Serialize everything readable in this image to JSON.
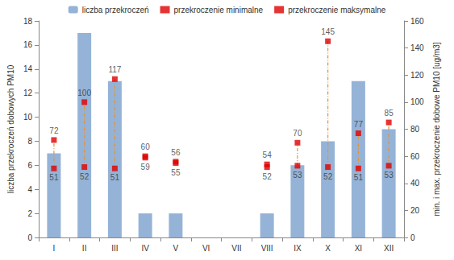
{
  "chart_data": {
    "type": "bar",
    "categories": [
      "I",
      "II",
      "III",
      "IV",
      "V",
      "VI",
      "VII",
      "VIII",
      "IX",
      "X",
      "XI",
      "XII"
    ],
    "series": [
      {
        "name": "liczba przekroczeń",
        "type": "bar",
        "color": "#95B3D7",
        "values": [
          7,
          17,
          13,
          2,
          2,
          0,
          0,
          2,
          6,
          8,
          13,
          9
        ]
      },
      {
        "name": "przekroczenie minimalne",
        "type": "scatter",
        "axis": "y2",
        "color": "#E00000",
        "marker": "square",
        "data_labels": true,
        "values": [
          51,
          52,
          51,
          59,
          55,
          null,
          null,
          52,
          53,
          52,
          51,
          53
        ]
      },
      {
        "name": "przekroczenie maksymalne",
        "type": "scatter",
        "axis": "y2",
        "color": "#E00000",
        "marker": "square",
        "data_labels": true,
        "values": [
          72,
          100,
          117,
          60,
          56,
          null,
          null,
          54,
          70,
          145,
          77,
          85
        ]
      }
    ],
    "ylabel": "liczba przekroczeń dobowych PM10",
    "y2label": "min. i max. przekroczenie dobowe PM10 [ug/m3]",
    "ylim": [
      0,
      18
    ],
    "yticks": [
      0,
      2,
      4,
      6,
      8,
      10,
      12,
      14,
      16,
      18
    ],
    "y2lim": [
      0,
      160
    ],
    "y2ticks": [
      0,
      20,
      40,
      60,
      80,
      100,
      120,
      140,
      160
    ],
    "grid": false,
    "legend": "top"
  }
}
